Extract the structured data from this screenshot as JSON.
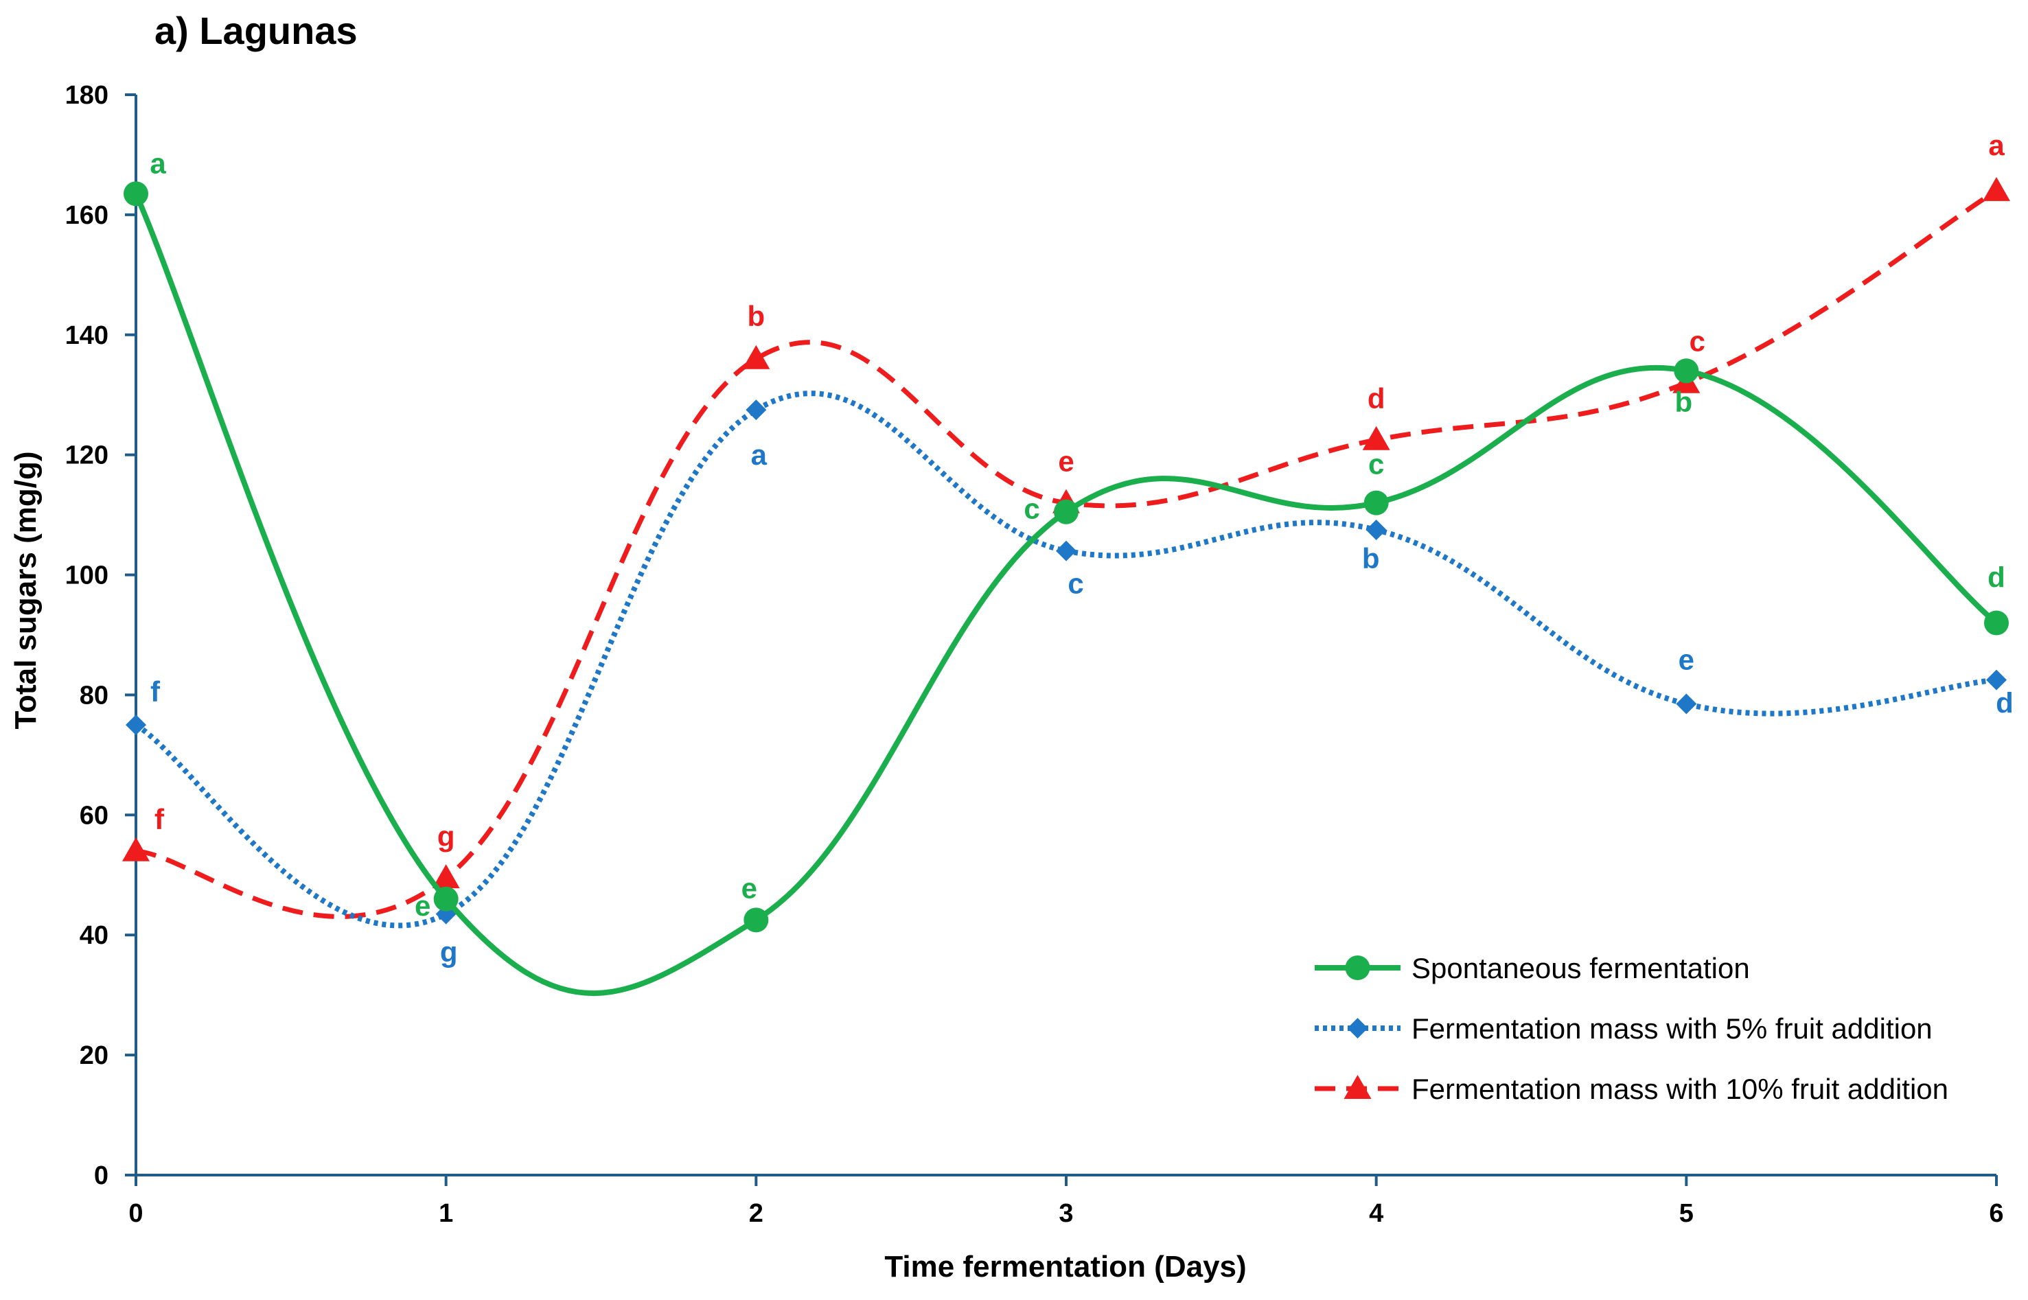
{
  "chart_data": {
    "type": "line",
    "title": "a) Lagunas",
    "xlabel": "Time fermentation (Days)",
    "ylabel": "Total sugars (mg/g)",
    "x": [
      0,
      1,
      2,
      3,
      4,
      5,
      6
    ],
    "xlim": [
      0,
      6
    ],
    "ylim": [
      0,
      180
    ],
    "yticks": [
      0,
      20,
      40,
      60,
      80,
      100,
      120,
      140,
      160,
      180
    ],
    "xticks": [
      0,
      1,
      2,
      3,
      4,
      5,
      6
    ],
    "grid": false,
    "legend_position": "bottom-right",
    "series": [
      {
        "name": "Spontaneous fermentation",
        "color": "#1AAE4C",
        "style": "solid",
        "marker": "circle",
        "values": [
          163.5,
          46,
          42.5,
          110.5,
          112,
          134,
          92
        ],
        "labels": [
          "a",
          "e",
          "e",
          "c",
          "c",
          "b",
          "d"
        ]
      },
      {
        "name": "Fermentation mass with 5%  fruit addition",
        "color": "#1F77C8",
        "style": "dotted",
        "marker": "diamond",
        "values": [
          75,
          43.5,
          127.5,
          104,
          107.5,
          78.5,
          82.5
        ],
        "labels": [
          "f",
          "g",
          "a",
          "c",
          "b",
          "e",
          "d"
        ]
      },
      {
        "name": "Fermentation mass with 10%  fruit addition",
        "color": "#EE1C1C",
        "style": "dashed",
        "marker": "triangle",
        "values": [
          54,
          49.5,
          136,
          112,
          122.5,
          132,
          164
        ],
        "labels": [
          "f",
          "g",
          "b",
          "e",
          "d",
          "c",
          "a"
        ]
      }
    ]
  }
}
